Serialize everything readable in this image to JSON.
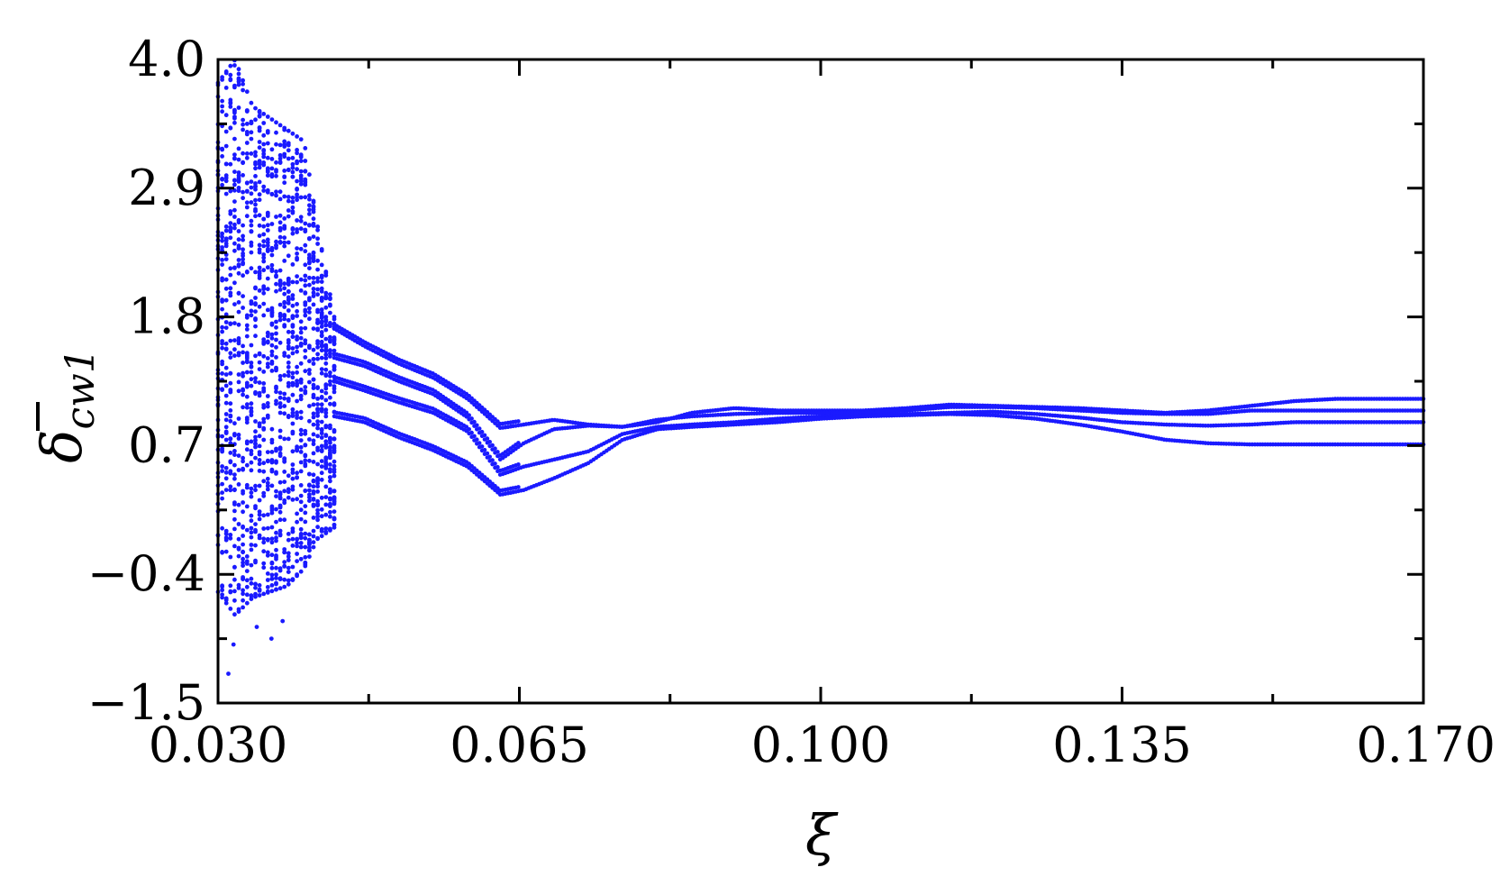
{
  "chart_data": {
    "type": "scatter",
    "title": "",
    "xlabel": "ξ",
    "ylabel": {
      "main": "δ",
      "subscript": "cw1",
      "overbar": true
    },
    "xlim": [
      0.03,
      0.17
    ],
    "ylim": [
      -1.5,
      4.0
    ],
    "x_ticks": [
      {
        "value": 0.03,
        "label": "0.030"
      },
      {
        "value": 0.065,
        "label": "0.065"
      },
      {
        "value": 0.1,
        "label": "0.100"
      },
      {
        "value": 0.135,
        "label": "0.135"
      },
      {
        "value": 0.17,
        "label": "0.170"
      }
    ],
    "x_minor_ticks": [
      0.0475,
      0.0825,
      0.1175,
      0.1525
    ],
    "y_ticks": [
      {
        "value": -1.5,
        "label": "−1.5"
      },
      {
        "value": -0.4,
        "label": "−0.4"
      },
      {
        "value": 0.7,
        "label": "0.7"
      },
      {
        "value": 1.8,
        "label": "1.8"
      },
      {
        "value": 2.9,
        "label": "2.9"
      },
      {
        "value": 4.0,
        "label": "4.0"
      }
    ],
    "y_minor_ticks": [
      -0.95,
      0.15,
      1.25,
      2.35,
      3.45
    ],
    "grid": false,
    "marker_color": "#1a1aff",
    "series": [
      {
        "chaotic_band": {
          "x_range": [
            0.03,
            0.0435
          ],
          "envelope": [
            {
              "x": 0.03,
              "ymin": -0.55,
              "ymax": 3.8
            },
            {
              "x": 0.032,
              "ymin": -0.75,
              "ymax": 4.0
            },
            {
              "x": 0.034,
              "ymin": -0.6,
              "ymax": 3.6
            },
            {
              "x": 0.036,
              "ymin": -0.55,
              "ymax": 3.5
            },
            {
              "x": 0.038,
              "ymin": -0.5,
              "ymax": 3.4
            },
            {
              "x": 0.04,
              "ymin": -0.35,
              "ymax": 3.3
            },
            {
              "x": 0.0415,
              "ymin": -0.1,
              "ymax": 2.6
            },
            {
              "x": 0.0435,
              "ymin": 0.0,
              "ymax": 1.8
            }
          ],
          "outliers": [
            {
              "x": 0.0312,
              "y": -1.25
            },
            {
              "x": 0.0318,
              "y": -1.0
            },
            {
              "x": 0.0345,
              "y": -0.85
            },
            {
              "x": 0.0362,
              "y": -0.95
            },
            {
              "x": 0.0375,
              "y": -0.8
            }
          ]
        },
        "branches": [
          {
            "points": [
              [
                0.0435,
                1.7
              ],
              [
                0.047,
                1.55
              ],
              [
                0.051,
                1.4
              ],
              [
                0.055,
                1.28
              ],
              [
                0.059,
                1.1
              ],
              [
                0.0628,
                0.85
              ],
              [
                0.0655,
                0.88
              ],
              [
                0.069,
                0.92
              ],
              [
                0.073,
                0.88
              ],
              [
                0.077,
                0.86
              ],
              [
                0.081,
                0.9
              ],
              [
                0.085,
                0.98
              ],
              [
                0.09,
                1.02
              ],
              [
                0.095,
                1.0
              ],
              [
                0.1,
                1.0
              ],
              [
                0.105,
                1.0
              ],
              [
                0.11,
                1.02
              ],
              [
                0.115,
                1.05
              ],
              [
                0.12,
                1.04
              ],
              [
                0.125,
                1.03
              ],
              [
                0.13,
                1.02
              ],
              [
                0.135,
                1.0
              ],
              [
                0.14,
                0.98
              ],
              [
                0.145,
                1.0
              ],
              [
                0.15,
                1.04
              ],
              [
                0.155,
                1.08
              ],
              [
                0.16,
                1.1
              ],
              [
                0.165,
                1.1
              ],
              [
                0.17,
                1.1
              ]
            ]
          },
          {
            "points": [
              [
                0.0435,
                1.45
              ],
              [
                0.047,
                1.38
              ],
              [
                0.051,
                1.25
              ],
              [
                0.055,
                1.14
              ],
              [
                0.059,
                0.94
              ],
              [
                0.0628,
                0.58
              ],
              [
                0.0655,
                0.72
              ],
              [
                0.069,
                0.84
              ],
              [
                0.073,
                0.87
              ],
              [
                0.077,
                0.86
              ],
              [
                0.081,
                0.92
              ],
              [
                0.085,
                0.95
              ],
              [
                0.09,
                0.97
              ],
              [
                0.095,
                0.98
              ],
              [
                0.1,
                0.98
              ],
              [
                0.105,
                0.98
              ],
              [
                0.11,
                1.0
              ],
              [
                0.115,
                1.03
              ],
              [
                0.12,
                1.03
              ],
              [
                0.125,
                1.02
              ],
              [
                0.13,
                1.0
              ],
              [
                0.135,
                0.98
              ],
              [
                0.14,
                0.97
              ],
              [
                0.145,
                0.97
              ],
              [
                0.15,
                1.0
              ],
              [
                0.155,
                1.0
              ],
              [
                0.16,
                1.0
              ],
              [
                0.165,
                1.0
              ],
              [
                0.17,
                1.0
              ]
            ]
          },
          {
            "points": [
              [
                0.0435,
                1.25
              ],
              [
                0.047,
                1.17
              ],
              [
                0.051,
                1.07
              ],
              [
                0.055,
                0.98
              ],
              [
                0.059,
                0.82
              ],
              [
                0.0628,
                0.45
              ],
              [
                0.0655,
                0.52
              ],
              [
                0.069,
                0.58
              ],
              [
                0.073,
                0.65
              ],
              [
                0.077,
                0.8
              ],
              [
                0.081,
                0.86
              ],
              [
                0.085,
                0.88
              ],
              [
                0.09,
                0.9
              ],
              [
                0.095,
                0.93
              ],
              [
                0.1,
                0.95
              ],
              [
                0.105,
                0.96
              ],
              [
                0.11,
                0.97
              ],
              [
                0.115,
                0.98
              ],
              [
                0.12,
                0.99
              ],
              [
                0.125,
                0.97
              ],
              [
                0.13,
                0.94
              ],
              [
                0.135,
                0.9
              ],
              [
                0.14,
                0.88
              ],
              [
                0.145,
                0.87
              ],
              [
                0.15,
                0.88
              ],
              [
                0.155,
                0.9
              ],
              [
                0.16,
                0.9
              ],
              [
                0.165,
                0.9
              ],
              [
                0.17,
                0.9
              ]
            ]
          },
          {
            "points": [
              [
                0.0435,
                0.95
              ],
              [
                0.047,
                0.9
              ],
              [
                0.051,
                0.77
              ],
              [
                0.055,
                0.66
              ],
              [
                0.059,
                0.52
              ],
              [
                0.0628,
                0.28
              ],
              [
                0.0655,
                0.32
              ],
              [
                0.069,
                0.42
              ],
              [
                0.073,
                0.55
              ],
              [
                0.077,
                0.75
              ],
              [
                0.081,
                0.84
              ],
              [
                0.085,
                0.86
              ],
              [
                0.09,
                0.88
              ],
              [
                0.095,
                0.9
              ],
              [
                0.1,
                0.93
              ],
              [
                0.105,
                0.95
              ],
              [
                0.11,
                0.96
              ],
              [
                0.115,
                0.97
              ],
              [
                0.12,
                0.96
              ],
              [
                0.125,
                0.93
              ],
              [
                0.13,
                0.88
              ],
              [
                0.135,
                0.82
              ],
              [
                0.14,
                0.75
              ],
              [
                0.145,
                0.72
              ],
              [
                0.15,
                0.71
              ],
              [
                0.155,
                0.71
              ],
              [
                0.16,
                0.71
              ],
              [
                0.165,
                0.71
              ],
              [
                0.17,
                0.71
              ]
            ]
          }
        ]
      }
    ]
  }
}
